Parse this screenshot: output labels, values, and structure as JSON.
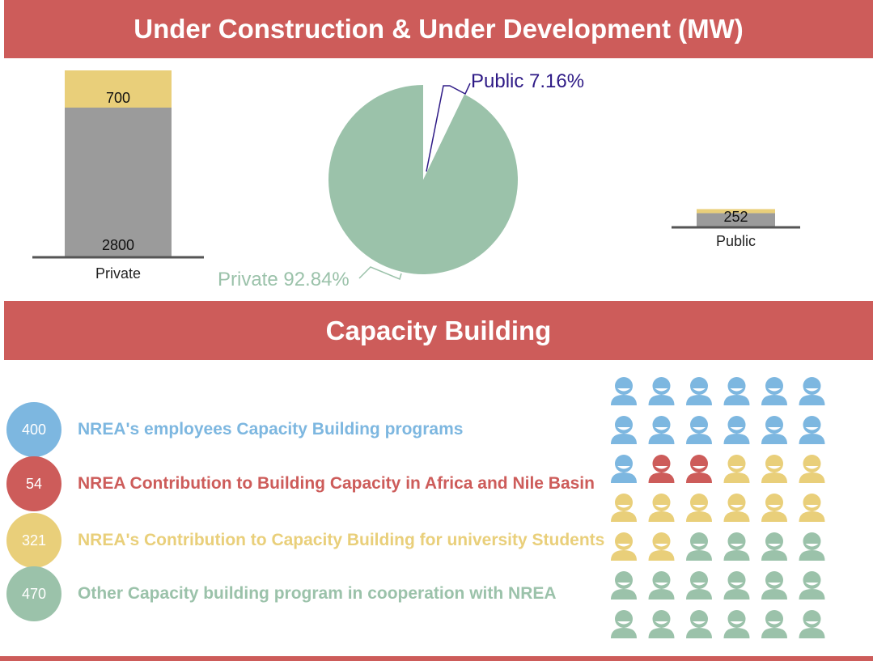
{
  "header": {
    "title": "Under Construction & Under Development (MW)"
  },
  "capacity": {
    "title": "Capacity Building",
    "items": [
      {
        "value": "400",
        "label": "NREA's employees Capacity Building programs",
        "color": "#7db7e0"
      },
      {
        "value": "54",
        "label": "NREA Contribution to Building Capacity in Africa and Nile Basin",
        "color": "#cd5c5a"
      },
      {
        "value": "321",
        "label": "NREA's Contribution to Capacity Building for university Students",
        "color": "#e9cf7a"
      },
      {
        "value": "470",
        "label": "Other Capacity building program in cooperation with NREA",
        "color": "#9bc2aa"
      }
    ],
    "people_grid": {
      "columns": 6,
      "rows": [
        [
          "blue",
          "blue",
          "blue",
          "blue",
          "blue",
          "blue"
        ],
        [
          "blue",
          "blue",
          "blue",
          "blue",
          "blue",
          "blue"
        ],
        [
          "blue",
          "red",
          "red",
          "yellow",
          "yellow",
          "yellow"
        ],
        [
          "yellow",
          "yellow",
          "yellow",
          "yellow",
          "yellow",
          "yellow"
        ],
        [
          "yellow",
          "yellow",
          "green",
          "green",
          "green",
          "green"
        ],
        [
          "green",
          "green",
          "green",
          "green",
          "green",
          "green"
        ],
        [
          "green",
          "green",
          "green",
          "green",
          "green",
          "green"
        ]
      ],
      "colors": {
        "blue": "#7db7e0",
        "red": "#cd5c5a",
        "yellow": "#e9cf7a",
        "green": "#9bc2aa"
      }
    }
  },
  "chart_data": [
    {
      "type": "bar",
      "stacked": true,
      "categories": [
        "Private"
      ],
      "series": [
        {
          "values": [
            2800
          ],
          "color": "#9b9b9b"
        },
        {
          "values": [
            700
          ],
          "color": "#e9cf7a"
        }
      ]
    },
    {
      "type": "pie",
      "labels": [
        "Public",
        "Private"
      ],
      "values": [
        7.16,
        92.84
      ],
      "display_labels": [
        "Public 7.16%",
        "Private 92.84%"
      ],
      "colors": [
        "#ffffff",
        "#9bc2aa"
      ],
      "label_colors": [
        "#2e1a86",
        "#9bc2aa"
      ]
    },
    {
      "type": "bar",
      "stacked": true,
      "categories": [
        "Public"
      ],
      "series": [
        {
          "values": [
            252
          ],
          "color": "#9b9b9b"
        },
        {
          "values": [
            18
          ],
          "color": "#e9cf7a"
        }
      ]
    }
  ]
}
